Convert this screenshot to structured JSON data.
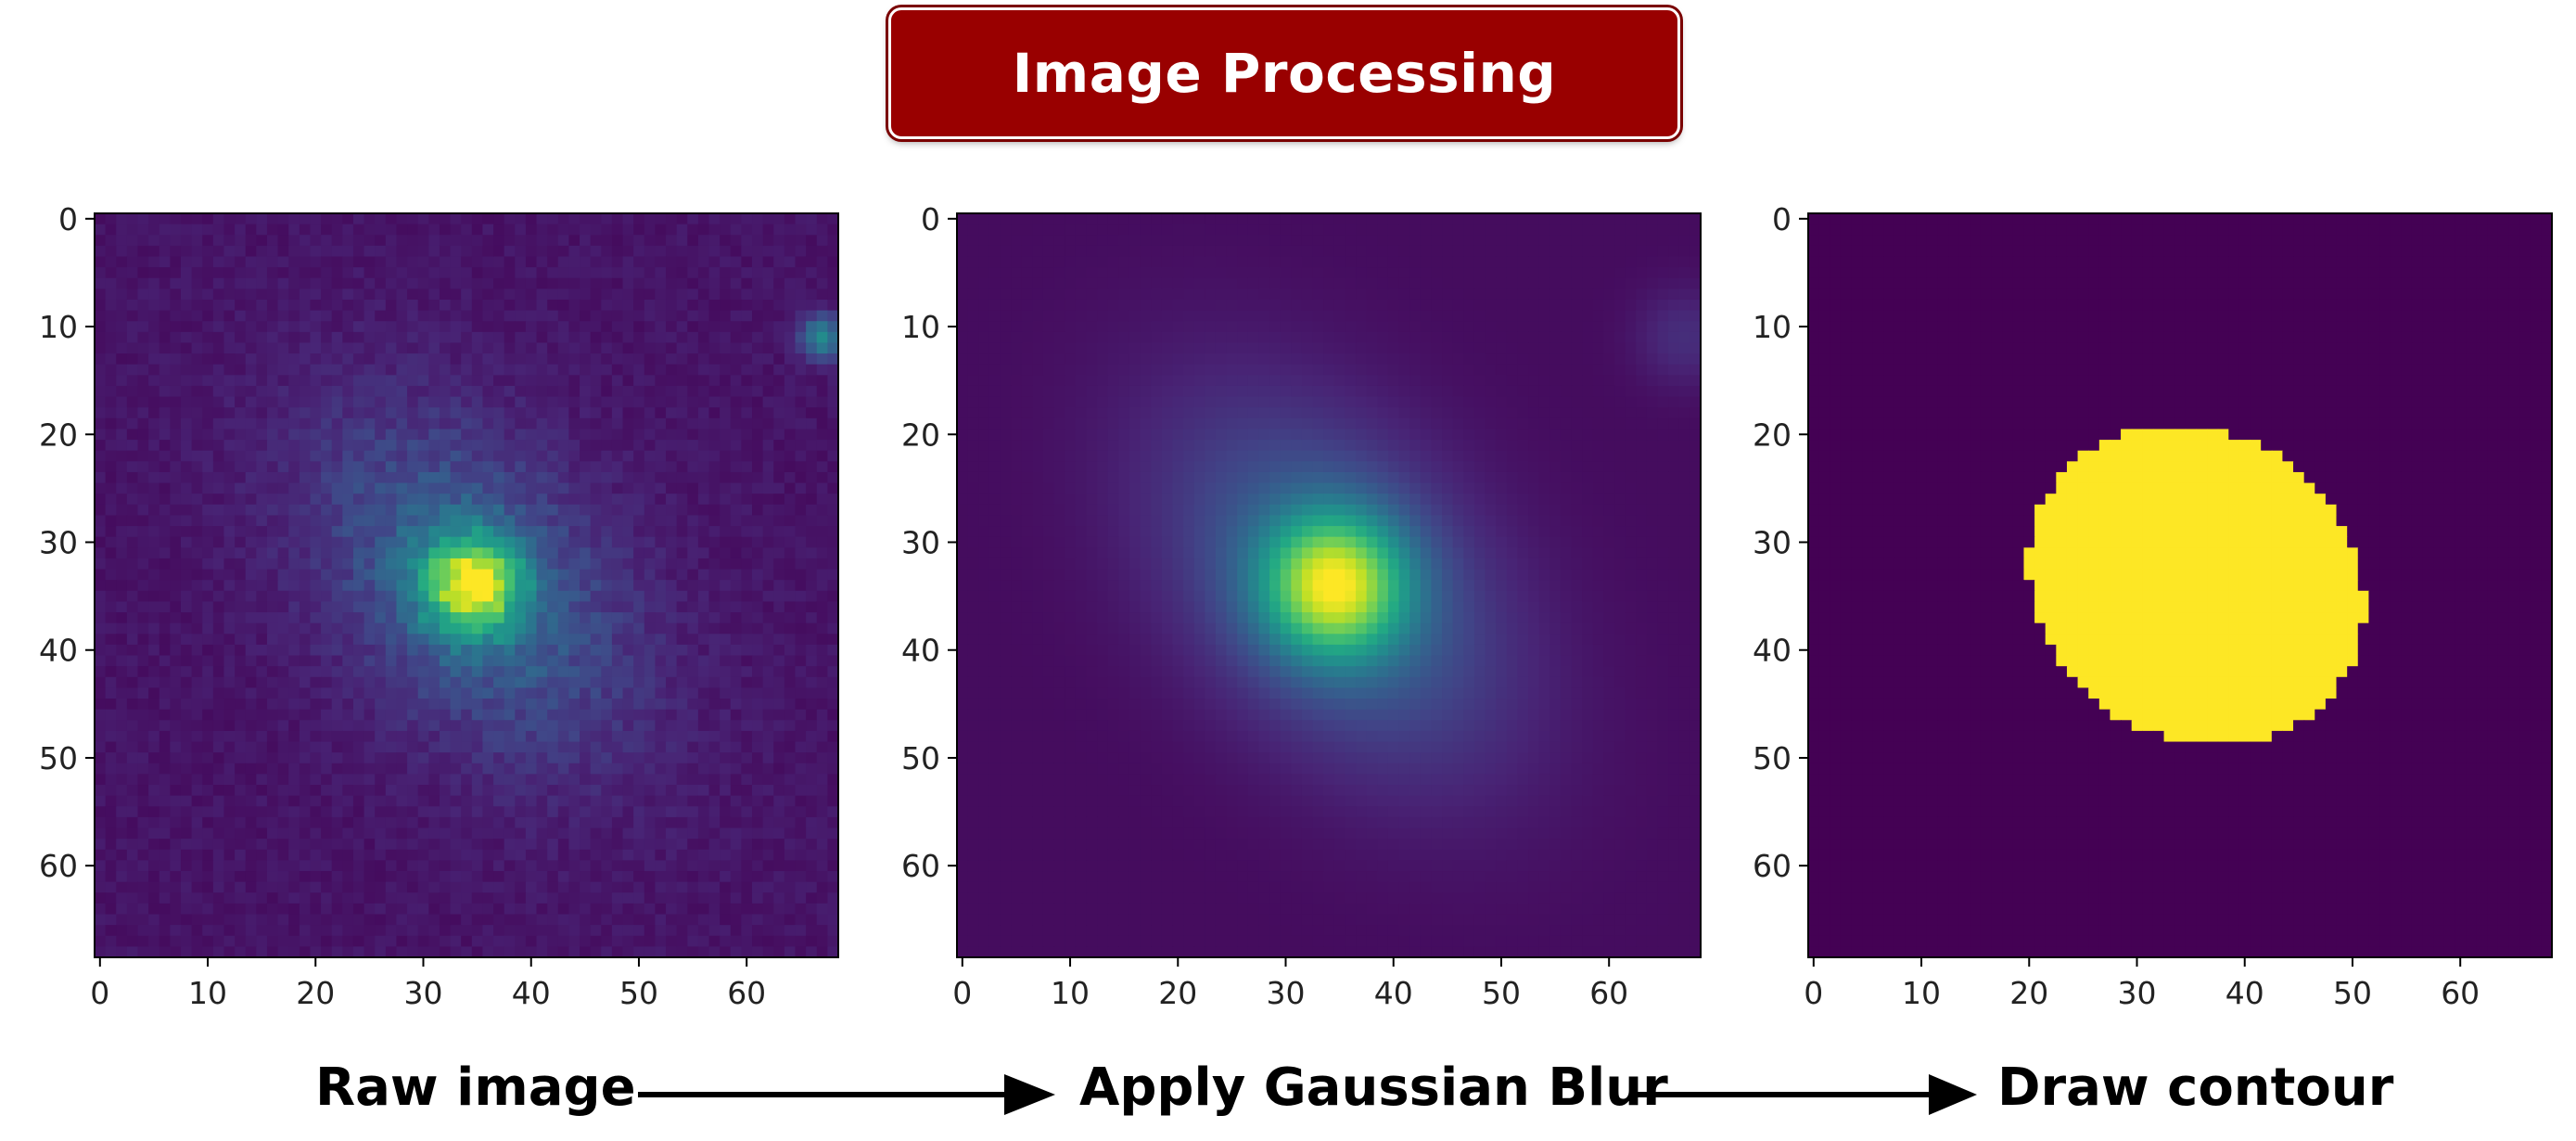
{
  "title": "Image Processing",
  "panels": [
    {
      "caption": "Raw image",
      "kind": "raw"
    },
    {
      "caption": "Apply Gaussian Blur",
      "kind": "blur"
    },
    {
      "caption": "Draw contour",
      "kind": "mask"
    }
  ],
  "axes": {
    "x_ticks": [
      "0",
      "10",
      "20",
      "30",
      "40",
      "50",
      "60"
    ],
    "y_ticks": [
      "0",
      "10",
      "20",
      "30",
      "40",
      "50",
      "60"
    ],
    "xlim": [
      -0.5,
      68.5
    ],
    "ylim": [
      68.5,
      -0.5
    ]
  },
  "colormap": "viridis",
  "colors": {
    "title_bg": "#990000",
    "background_dark": "#440154",
    "mask_fill": "#FDE725",
    "arrow": "#000000"
  }
}
